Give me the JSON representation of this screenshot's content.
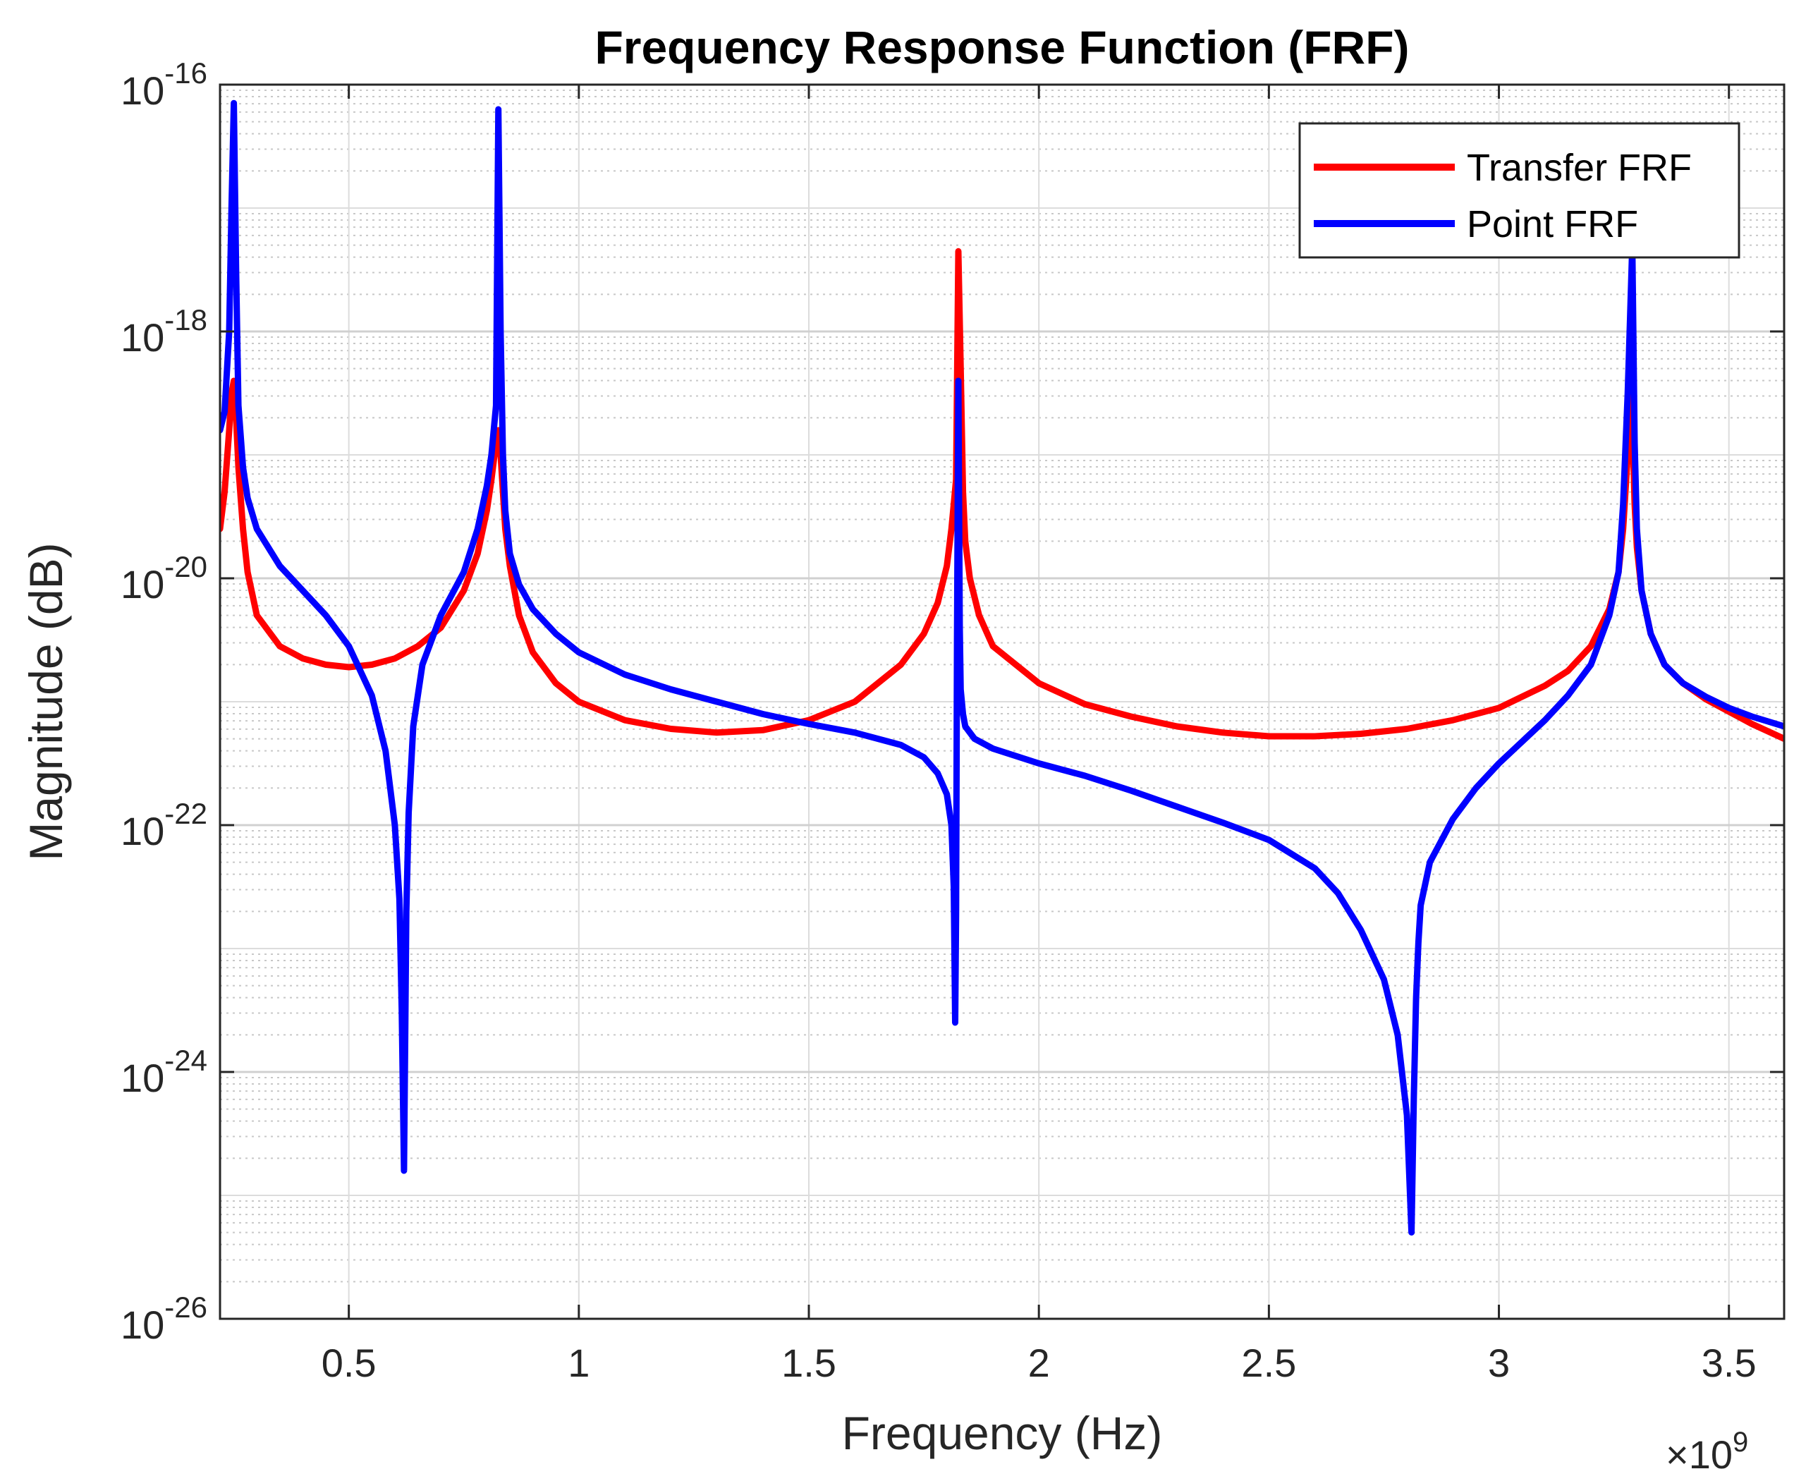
{
  "chart_data": {
    "type": "line",
    "title": "Frequency Response Function (FRF)",
    "xlabel": "Frequency (Hz)",
    "ylabel": "Magnitude (dB)",
    "x_multiplier_label": "×10",
    "x_multiplier_exponent": "9",
    "x_scale": "linear",
    "y_scale": "log",
    "xlim": [
      0.22,
      3.62
    ],
    "ylim_log10": [
      -26,
      -16
    ],
    "x_ticks": [
      0.5,
      1,
      1.5,
      2,
      2.5,
      3,
      3.5
    ],
    "x_tick_labels": [
      "0.5",
      "1",
      "1.5",
      "2",
      "2.5",
      "3",
      "3.5"
    ],
    "y_tick_exponents": [
      -16,
      -18,
      -20,
      -22,
      -24,
      -26
    ],
    "y_tick_base": "10",
    "y_tick_labels": [
      "-16",
      "-18",
      "-20",
      "-22",
      "-24",
      "-26"
    ],
    "grid": true,
    "minor_grid": true,
    "legend_position": "top-right",
    "series": [
      {
        "name": "Transfer FRF",
        "color": "#ff0000",
        "x": [
          0.22,
          0.23,
          0.24,
          0.245,
          0.25,
          0.255,
          0.26,
          0.27,
          0.28,
          0.3,
          0.35,
          0.4,
          0.45,
          0.5,
          0.55,
          0.6,
          0.65,
          0.7,
          0.75,
          0.78,
          0.8,
          0.81,
          0.82,
          0.825,
          0.83,
          0.835,
          0.84,
          0.85,
          0.87,
          0.9,
          0.95,
          1.0,
          1.1,
          1.2,
          1.3,
          1.4,
          1.5,
          1.6,
          1.7,
          1.75,
          1.78,
          1.8,
          1.81,
          1.82,
          1.825,
          1.83,
          1.835,
          1.84,
          1.85,
          1.87,
          1.9,
          2.0,
          2.1,
          2.2,
          2.3,
          2.4,
          2.5,
          2.6,
          2.7,
          2.8,
          2.9,
          3.0,
          3.1,
          3.15,
          3.2,
          3.24,
          3.26,
          3.27,
          3.28,
          3.285,
          3.29,
          3.295,
          3.3,
          3.31,
          3.33,
          3.36,
          3.4,
          3.45,
          3.5,
          3.55,
          3.62
        ],
        "y_log10": [
          -19.6,
          -19.3,
          -18.8,
          -18.5,
          -18.4,
          -18.7,
          -19.1,
          -19.6,
          -19.95,
          -20.3,
          -20.55,
          -20.65,
          -20.7,
          -20.72,
          -20.7,
          -20.65,
          -20.55,
          -20.4,
          -20.1,
          -19.8,
          -19.45,
          -19.2,
          -18.9,
          -18.8,
          -19.0,
          -19.3,
          -19.6,
          -19.9,
          -20.3,
          -20.6,
          -20.85,
          -21.0,
          -21.15,
          -21.22,
          -21.25,
          -21.23,
          -21.15,
          -21.0,
          -20.7,
          -20.45,
          -20.2,
          -19.9,
          -19.6,
          -19.2,
          -17.35,
          -18.3,
          -19.3,
          -19.7,
          -20.0,
          -20.3,
          -20.55,
          -20.85,
          -21.02,
          -21.12,
          -21.2,
          -21.25,
          -21.28,
          -21.28,
          -21.26,
          -21.22,
          -21.15,
          -21.05,
          -20.87,
          -20.75,
          -20.55,
          -20.25,
          -19.95,
          -19.6,
          -19.0,
          -18.5,
          -18.7,
          -19.4,
          -19.75,
          -20.1,
          -20.45,
          -20.7,
          -20.85,
          -20.98,
          -21.08,
          -21.18,
          -21.3
        ]
      },
      {
        "name": "Point FRF",
        "color": "#0000ff",
        "x": [
          0.22,
          0.23,
          0.24,
          0.245,
          0.25,
          0.255,
          0.26,
          0.27,
          0.28,
          0.3,
          0.35,
          0.4,
          0.45,
          0.5,
          0.55,
          0.58,
          0.6,
          0.61,
          0.615,
          0.62,
          0.625,
          0.63,
          0.64,
          0.66,
          0.7,
          0.75,
          0.78,
          0.8,
          0.81,
          0.82,
          0.825,
          0.83,
          0.835,
          0.84,
          0.85,
          0.87,
          0.9,
          0.95,
          1.0,
          1.1,
          1.2,
          1.3,
          1.4,
          1.5,
          1.6,
          1.7,
          1.75,
          1.78,
          1.8,
          1.81,
          1.815,
          1.818,
          1.82,
          1.822,
          1.825,
          1.828,
          1.83,
          1.835,
          1.84,
          1.86,
          1.9,
          2.0,
          2.1,
          2.2,
          2.3,
          2.4,
          2.5,
          2.6,
          2.65,
          2.7,
          2.75,
          2.78,
          2.8,
          2.81,
          2.815,
          2.82,
          2.825,
          2.83,
          2.85,
          2.9,
          2.95,
          3.0,
          3.1,
          3.15,
          3.2,
          3.24,
          3.26,
          3.27,
          3.28,
          3.285,
          3.29,
          3.295,
          3.3,
          3.31,
          3.33,
          3.36,
          3.4,
          3.45,
          3.5,
          3.55,
          3.62
        ],
        "y_log10": [
          -18.8,
          -18.65,
          -18.0,
          -17.0,
          -16.15,
          -17.5,
          -18.6,
          -19.1,
          -19.35,
          -19.6,
          -19.9,
          -20.1,
          -20.3,
          -20.55,
          -20.95,
          -21.4,
          -22.0,
          -22.6,
          -23.5,
          -24.8,
          -22.7,
          -21.9,
          -21.2,
          -20.7,
          -20.3,
          -19.95,
          -19.6,
          -19.25,
          -19.0,
          -18.6,
          -16.2,
          -18.0,
          -19.0,
          -19.45,
          -19.8,
          -20.05,
          -20.25,
          -20.45,
          -20.6,
          -20.78,
          -20.9,
          -21.0,
          -21.1,
          -21.18,
          -21.25,
          -21.35,
          -21.45,
          -21.58,
          -21.75,
          -22.0,
          -22.5,
          -23.6,
          -22.7,
          -20.5,
          -18.4,
          -20.4,
          -20.9,
          -21.1,
          -21.2,
          -21.3,
          -21.38,
          -21.5,
          -21.6,
          -21.72,
          -21.85,
          -21.98,
          -22.12,
          -22.35,
          -22.55,
          -22.85,
          -23.25,
          -23.7,
          -24.35,
          -25.3,
          -24.2,
          -23.4,
          -22.95,
          -22.65,
          -22.3,
          -21.95,
          -21.7,
          -21.5,
          -21.15,
          -20.95,
          -20.7,
          -20.3,
          -19.95,
          -19.4,
          -18.5,
          -17.9,
          -17.3,
          -18.9,
          -19.6,
          -20.1,
          -20.45,
          -20.7,
          -20.85,
          -20.96,
          -21.05,
          -21.12,
          -21.2
        ]
      }
    ]
  }
}
